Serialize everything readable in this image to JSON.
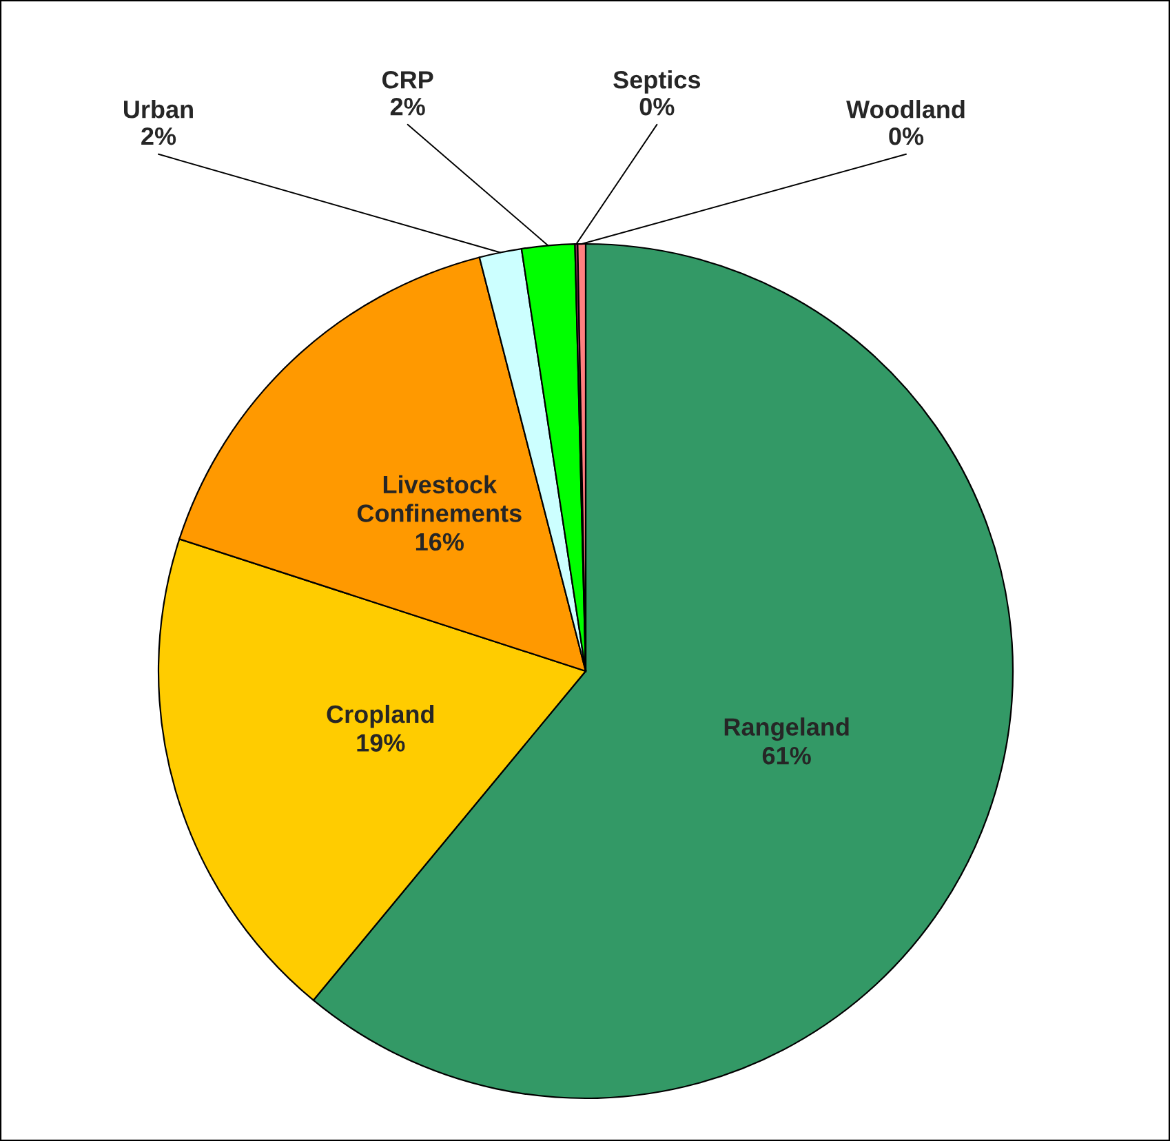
{
  "chart_data": {
    "type": "pie",
    "categories": [
      "Rangeland",
      "Cropland",
      "Livestock Confinements",
      "Urban",
      "CRP",
      "Septics",
      "Woodland"
    ],
    "values": [
      61,
      19,
      16,
      1.6,
      2.0,
      0.1,
      0.3
    ],
    "value_labels": [
      "61%",
      "19%",
      "16%",
      "2%",
      "2%",
      "0%",
      "0%"
    ],
    "colors": [
      "#339966",
      "#ffcc00",
      "#ff9900",
      "#ccffff",
      "#00ff00",
      "#993366",
      "#ff8080"
    ],
    "legend": false
  }
}
